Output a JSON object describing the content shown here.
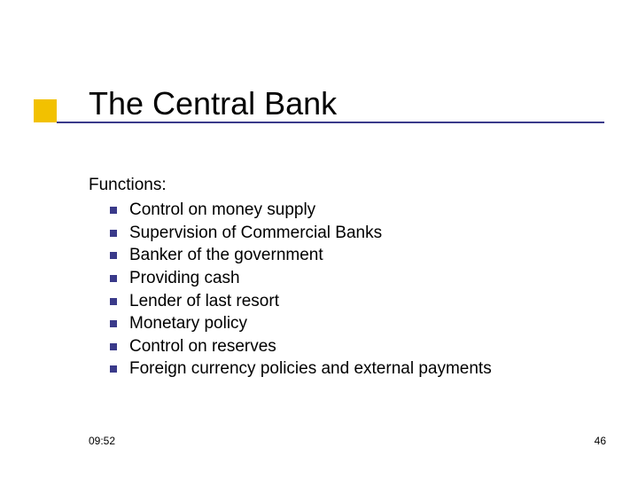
{
  "accent_color": "#f2c100",
  "rule_color": "#3a3a8a",
  "bullet_color": "#3a3a8a",
  "background_color": "#ffffff",
  "text_color": "#000000",
  "title": "The Central Bank",
  "title_fontsize": 36,
  "body_fontsize": 19,
  "lead": "Functions:",
  "bullets": [
    "Control on money supply",
    "Supervision of Commercial Banks",
    "Banker of the government",
    "Providing cash",
    "Lender of last resort",
    "Monetary policy",
    "Control on reserves",
    "Foreign currency policies and external payments"
  ],
  "footer": {
    "time": "09:52",
    "page": "46"
  }
}
